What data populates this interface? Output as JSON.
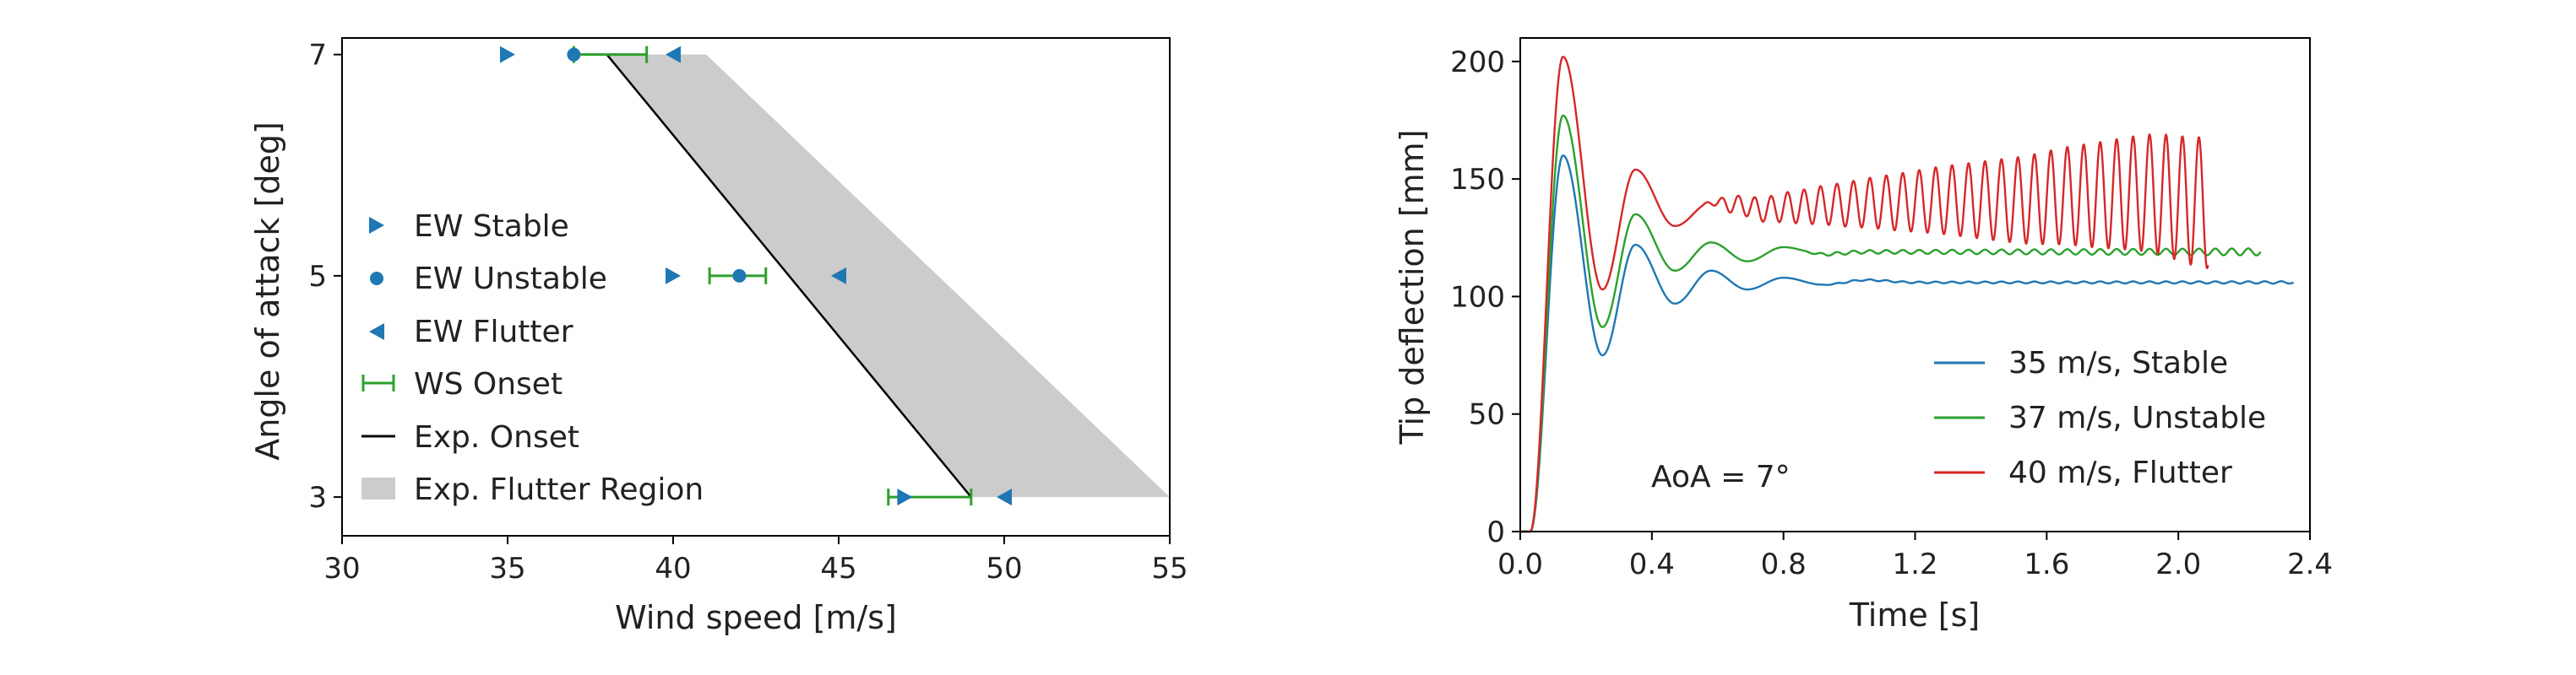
{
  "chart_data": [
    {
      "type": "scatter",
      "xlabel": "Wind speed [m/s]",
      "ylabel": "Angle of attack [deg]",
      "xlim": [
        30,
        55
      ],
      "ylim": [
        2.65,
        7.15
      ],
      "xticks": [
        30,
        35,
        40,
        45,
        50,
        55
      ],
      "xtick_labels": [
        "30",
        "35",
        "40",
        "45",
        "50",
        "55"
      ],
      "yticks": [
        3,
        5,
        7
      ],
      "ytick_labels": [
        "3",
        "5",
        "7"
      ],
      "grid": false,
      "legend_position": "center-left",
      "colors": {
        "ew": "#1f77b4",
        "ws": "#2ca02c",
        "onset": "#000000",
        "region": "#cccccc"
      },
      "series": [
        {
          "name": "EW Stable",
          "marker": "triangle-right",
          "points": [
            [
              35,
              7
            ],
            [
              40,
              5
            ],
            [
              47,
              3
            ]
          ]
        },
        {
          "name": "EW Unstable",
          "marker": "circle",
          "points": [
            [
              37,
              7
            ],
            [
              42,
              5
            ]
          ]
        },
        {
          "name": "EW Flutter",
          "marker": "triangle-left",
          "points": [
            [
              40,
              7
            ],
            [
              45,
              5
            ],
            [
              50,
              3
            ]
          ]
        },
        {
          "name": "WS Onset",
          "marker": "errorbar",
          "points": [
            [
              37,
              7,
              37,
              39.2
            ],
            [
              42,
              5,
              41.1,
              42.8
            ],
            [
              49,
              3,
              46.5,
              49
            ]
          ]
        },
        {
          "name": "Exp. Onset",
          "marker": "line",
          "points": [
            [
              38,
              7
            ],
            [
              49,
              3
            ]
          ]
        },
        {
          "name": "Exp. Flutter Region",
          "marker": "region",
          "polygon": [
            [
              38,
              7
            ],
            [
              41,
              7
            ],
            [
              55,
              3
            ],
            [
              49,
              3
            ]
          ]
        }
      ]
    },
    {
      "type": "line",
      "xlabel": "Time [s]",
      "ylabel": "Tip deflection [mm]",
      "xlim": [
        0,
        2.4
      ],
      "ylim": [
        0,
        210
      ],
      "xticks": [
        0,
        0.4,
        0.8,
        1.2,
        1.6,
        2.0,
        2.4
      ],
      "xtick_labels": [
        "0.0",
        "0.4",
        "0.8",
        "1.2",
        "1.6",
        "2.0",
        "2.4"
      ],
      "yticks": [
        0,
        50,
        100,
        150,
        200
      ],
      "ytick_labels": [
        "0",
        "50",
        "100",
        "150",
        "200"
      ],
      "grid": false,
      "legend_position": "right",
      "annotation": "AoA = 7°",
      "series": [
        {
          "name": "35 m/s, Stable",
          "color": "#1f77b4",
          "end_time": 2.35,
          "keypoints": [
            [
              0,
              0
            ],
            [
              0.03,
              0
            ],
            [
              0.13,
              160
            ],
            [
              0.25,
              75
            ],
            [
              0.35,
              122
            ],
            [
              0.47,
              97
            ],
            [
              0.58,
              111
            ],
            [
              0.69,
              103
            ],
            [
              0.8,
              108
            ],
            [
              0.92,
              105
            ],
            [
              1.05,
              107
            ],
            [
              1.2,
              106
            ],
            [
              2.35,
              106
            ]
          ],
          "oscillation": {
            "start": 0.9,
            "base": 106,
            "amp_start": 0.3,
            "amp_end": 0.5,
            "freq": 20
          }
        },
        {
          "name": "37 m/s, Unstable",
          "color": "#2ca02c",
          "end_time": 2.25,
          "keypoints": [
            [
              0,
              0
            ],
            [
              0.03,
              0
            ],
            [
              0.13,
              177
            ],
            [
              0.25,
              87
            ],
            [
              0.35,
              135
            ],
            [
              0.47,
              111
            ],
            [
              0.58,
              123
            ],
            [
              0.69,
              115
            ],
            [
              0.8,
              121
            ],
            [
              0.92,
              118
            ],
            [
              1.05,
              119
            ],
            [
              2.25,
              119
            ]
          ],
          "oscillation": {
            "start": 0.85,
            "base": 119,
            "amp_start": 0.6,
            "amp_end": 1.5,
            "freq": 20
          }
        },
        {
          "name": "40 m/s, Flutter",
          "color": "#d62728",
          "end_time": 2.09,
          "keypoints": [
            [
              0,
              0
            ],
            [
              0.03,
              0
            ],
            [
              0.13,
              202
            ],
            [
              0.25,
              103
            ],
            [
              0.35,
              154
            ],
            [
              0.47,
              130
            ],
            [
              0.58,
              140
            ],
            [
              0.66,
              139
            ],
            [
              0.74,
              137
            ],
            [
              0.82,
              138
            ],
            [
              0.95,
              139
            ],
            [
              1.1,
              140
            ],
            [
              1.3,
              141
            ],
            [
              1.5,
              141
            ],
            [
              1.7,
              143
            ],
            [
              1.9,
              144
            ],
            [
              2.09,
              140
            ]
          ],
          "oscillation": {
            "start": 0.55,
            "base": 140,
            "amp_start": 2,
            "amp_end": 28,
            "freq": 20
          }
        }
      ]
    }
  ]
}
